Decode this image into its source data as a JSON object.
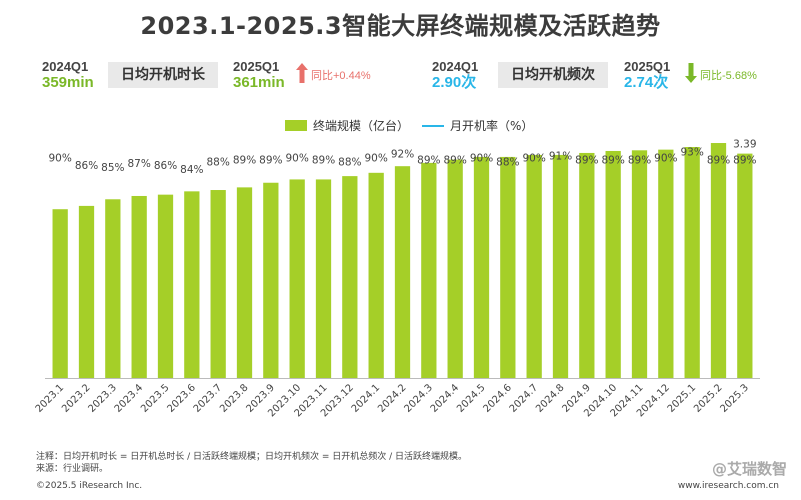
{
  "title": "2023.1-2025.3智能大屏终端规模及活跃趋势",
  "kpis": {
    "duration": {
      "prev_period": "2024Q1",
      "prev_value": "359min",
      "label": "日均开机时长",
      "cur_period": "2025Q1",
      "cur_value": "361min",
      "change": "同比+0.44%"
    },
    "frequency": {
      "prev_period": "2024Q1",
      "prev_value": "2.90次",
      "label": "日均开机频次",
      "cur_period": "2025Q1",
      "cur_value": "2.74次",
      "change": "同比-5.68%"
    }
  },
  "colors": {
    "bar": "#a5cf28",
    "line": "#29b6e8",
    "green": "#7ab828",
    "up_arrow": "#e8716b",
    "down_arrow": "#7ab828"
  },
  "chart_data": {
    "type": "bar",
    "title": "2023.1-2025.3智能大屏终端规模及活跃趋势",
    "categories": [
      "2023.1",
      "2023.2",
      "2023.3",
      "2023.4",
      "2023.5",
      "2023.6",
      "2023.7",
      "2023.8",
      "2023.9",
      "2023.10",
      "2023.11",
      "2023.12",
      "2024.1",
      "2024.2",
      "2024.3",
      "2024.4",
      "2024.5",
      "2024.6",
      "2024.7",
      "2024.8",
      "2024.9",
      "2024.10",
      "2024.11",
      "2024.12",
      "2025.1",
      "2025.2",
      "2025.3"
    ],
    "series": [
      {
        "name": "终端规模（亿台）",
        "type": "bar",
        "values": [
          2.55,
          2.6,
          2.7,
          2.75,
          2.77,
          2.82,
          2.84,
          2.88,
          2.95,
          3.0,
          3.0,
          3.05,
          3.1,
          3.2,
          3.25,
          3.3,
          3.34,
          3.34,
          3.37,
          3.37,
          3.4,
          3.43,
          3.44,
          3.45,
          3.49,
          3.55,
          3.39
        ]
      },
      {
        "name": "月开机率（%）",
        "type": "line",
        "values": [
          90,
          86,
          85,
          87,
          86,
          84,
          88,
          89,
          89,
          90,
          89,
          88,
          90,
          92,
          89,
          89,
          90,
          88,
          90,
          91,
          89,
          89,
          89,
          90,
          93,
          89,
          89
        ],
        "labels": [
          "90%",
          "86%",
          "85%",
          "87%",
          "86%",
          "84%",
          "88%",
          "89%",
          "89%",
          "90%",
          "89%",
          "88%",
          "90%",
          "92%",
          "89%",
          "89%",
          "90%",
          "88%",
          "90%",
          "91%",
          "89%",
          "89%",
          "89%",
          "90%",
          "93%",
          "89%",
          "89%"
        ]
      }
    ],
    "bar_value_labels": [
      {
        "index": 26,
        "label": "3.39"
      }
    ],
    "ylim": [
      0,
      4.2
    ],
    "line_ylim": [
      0,
      140
    ],
    "xlabel": "",
    "ylabel": "",
    "legend_position": "top"
  },
  "legend": {
    "bar_label": "终端规模（亿台）",
    "line_label": "月开机率（%）"
  },
  "notes": {
    "note1": "注释：日均开机时长 = 日开机总时长 / 日活跃终端规模；日均开机频次 = 日开机总频次 / 日活跃终端规模。",
    "note2": "来源：行业调研。"
  },
  "footer": {
    "copyright": "©2025.5 iResearch Inc.",
    "site": "www.iresearch.com.cn",
    "watermark": "@艾瑞数智"
  }
}
